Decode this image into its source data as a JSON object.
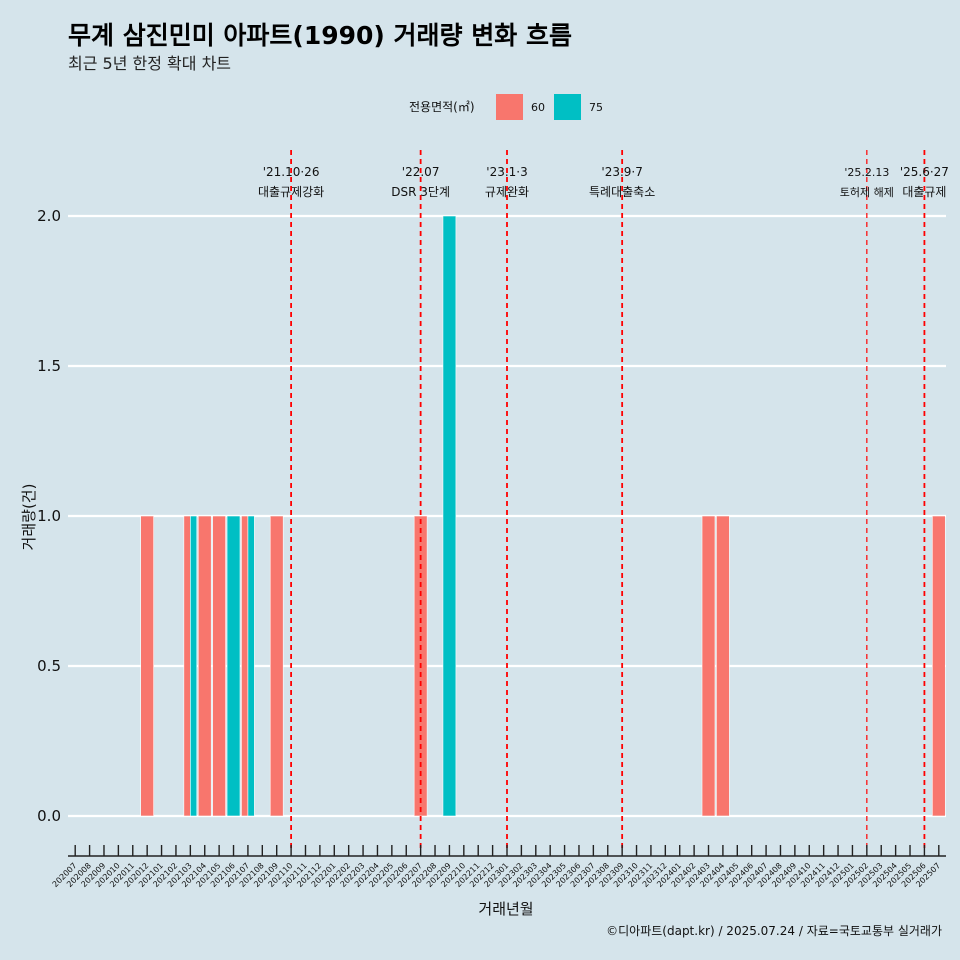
{
  "title": "무계 삼진민미 아파트(1990) 거래량 변화 흐름",
  "subtitle": "최근 5년 한정 확대 차트",
  "caption": "©디아파트(dapt.kr) / 2025.07.24 / 자료=국토교통부 실거래가",
  "colors": {
    "background": "#d5e4eb",
    "series_60": "#f8766d",
    "series_75": "#00bfc4",
    "event_line": "#ff0000",
    "grid": "#ffffff"
  },
  "chart_data": {
    "type": "bar",
    "xlabel": "거래년월",
    "ylabel": "거래량(건)",
    "ylim": [
      -0.12,
      2.22
    ],
    "yticks": [
      0.0,
      0.5,
      1.0,
      1.5,
      2.0
    ],
    "ytick_labels": [
      "0.0",
      "0.5",
      "1.0",
      "1.5",
      "2.0"
    ],
    "legend": {
      "title": "전용면적(㎡)",
      "position": "top"
    },
    "categories": [
      "202007",
      "202008",
      "202009",
      "202010",
      "202011",
      "202012",
      "202101",
      "202102",
      "202103",
      "202104",
      "202105",
      "202106",
      "202107",
      "202108",
      "202109",
      "202110",
      "202111",
      "202112",
      "202201",
      "202202",
      "202203",
      "202204",
      "202205",
      "202206",
      "202207",
      "202208",
      "202209",
      "202210",
      "202211",
      "202212",
      "202301",
      "202302",
      "202303",
      "202304",
      "202305",
      "202306",
      "202307",
      "202308",
      "202309",
      "202310",
      "202311",
      "202312",
      "202401",
      "202402",
      "202403",
      "202404",
      "202405",
      "202406",
      "202407",
      "202408",
      "202409",
      "202410",
      "202411",
      "202412",
      "202501",
      "202502",
      "202503",
      "202504",
      "202505",
      "202506",
      "202507"
    ],
    "bars": [
      {
        "month": "202012",
        "area": "60",
        "value": 1
      },
      {
        "month": "202103",
        "area": "60",
        "value": 1
      },
      {
        "month": "202103",
        "area": "75",
        "value": 1
      },
      {
        "month": "202104",
        "area": "60",
        "value": 1
      },
      {
        "month": "202105",
        "area": "60",
        "value": 1
      },
      {
        "month": "202106",
        "area": "75",
        "value": 1
      },
      {
        "month": "202107",
        "area": "60",
        "value": 1
      },
      {
        "month": "202107",
        "area": "75",
        "value": 1
      },
      {
        "month": "202109",
        "area": "60",
        "value": 1
      },
      {
        "month": "202207",
        "area": "60",
        "value": 1
      },
      {
        "month": "202209",
        "area": "75",
        "value": 2
      },
      {
        "month": "202403",
        "area": "60",
        "value": 1
      },
      {
        "month": "202404",
        "area": "60",
        "value": 1
      },
      {
        "month": "202507",
        "area": "60",
        "value": 1
      }
    ],
    "series": [
      {
        "name": "60",
        "color": "#f8766d"
      },
      {
        "name": "75",
        "color": "#00bfc4"
      }
    ],
    "events": [
      {
        "month": "202110",
        "line1": "'21.10·26",
        "line2": "대출규제강화",
        "small": false
      },
      {
        "month": "202207",
        "line1": "'22.07",
        "line2": "DSR 3단계",
        "small": false
      },
      {
        "month": "202301",
        "line1": "'23.1·3",
        "line2": "규제완화",
        "small": false
      },
      {
        "month": "202309",
        "line1": "'23.9·7",
        "line2": "특례대출축소",
        "small": false
      },
      {
        "month": "202502",
        "line1": "'25.2.13",
        "line2": "토허제 해제",
        "small": true
      },
      {
        "month": "202506",
        "line1": "'25.6·27",
        "line2": "대출규제",
        "small": false
      }
    ]
  }
}
